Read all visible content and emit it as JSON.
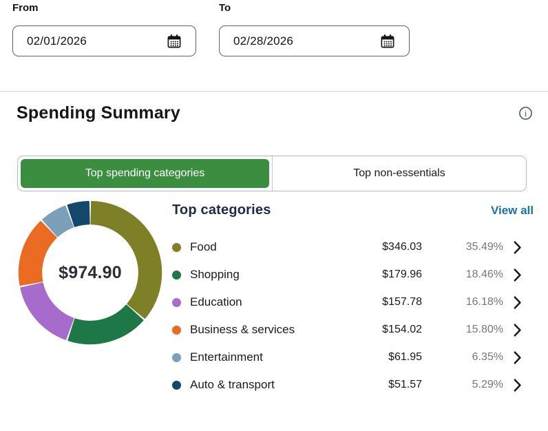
{
  "filters": {
    "from": {
      "label": "From",
      "value": "02/01/2026"
    },
    "to": {
      "label": "To",
      "value": "02/28/2026"
    }
  },
  "header": {
    "title": "Spending Summary"
  },
  "tabs": [
    {
      "label": "Top spending categories",
      "active": true
    },
    {
      "label": "Top non-essentials",
      "active": false
    }
  ],
  "summary": {
    "heading": "Top categories",
    "view_all_label": "View all",
    "total": "$974.90"
  },
  "categories": [
    {
      "name": "Food",
      "amount": "$346.03",
      "percent": "35.49%",
      "color": "#7d8026"
    },
    {
      "name": "Shopping",
      "amount": "$179.96",
      "percent": "18.46%",
      "color": "#1e7746"
    },
    {
      "name": "Education",
      "amount": "$157.78",
      "percent": "16.18%",
      "color": "#a76bcb"
    },
    {
      "name": "Business & services",
      "amount": "$154.02",
      "percent": "15.80%",
      "color": "#ea6b21"
    },
    {
      "name": "Entertainment",
      "amount": "$61.95",
      "percent": "6.35%",
      "color": "#7c9fba"
    },
    {
      "name": "Auto & transport",
      "amount": "$51.57",
      "percent": "5.29%",
      "color": "#14486b"
    }
  ],
  "chart_data": {
    "type": "pie",
    "title": "Top categories",
    "center_label": "$974.90",
    "total": 974.9,
    "labels": [
      "Food",
      "Shopping",
      "Education",
      "Business & services",
      "Entertainment",
      "Auto & transport"
    ],
    "values": [
      346.03,
      179.96,
      157.78,
      154.02,
      61.95,
      51.57
    ],
    "percents": [
      35.49,
      18.46,
      16.18,
      15.8,
      6.35,
      5.29
    ],
    "colors": [
      "#7d8026",
      "#1e7746",
      "#a76bcb",
      "#ea6b21",
      "#7c9fba",
      "#14486b"
    ],
    "legend_position": "right",
    "start_angle_deg": 0,
    "direction": "clockwise"
  },
  "colors": {
    "active_tab_green": "#3b8e3f",
    "link_blue": "#1a70ad",
    "percent_gray": "#74777b",
    "info_icon_blue": "#3e5878",
    "heading_navy": "#1b2b4a"
  }
}
